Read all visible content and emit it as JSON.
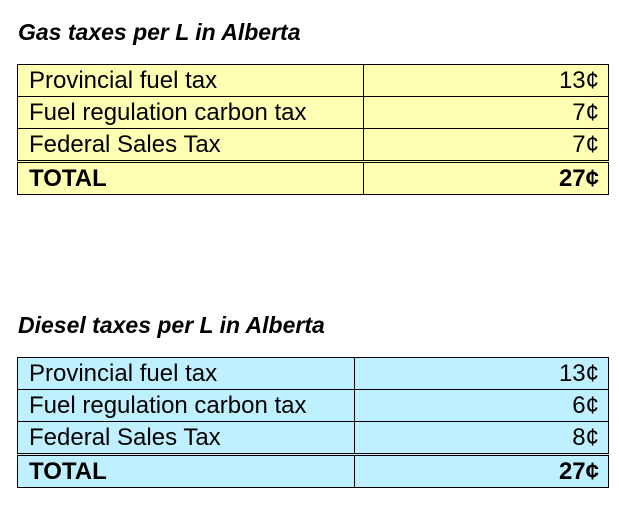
{
  "gas": {
    "title": "Gas taxes per L in Alberta",
    "rows": [
      {
        "label": "Provincial fuel tax",
        "amount": "13¢"
      },
      {
        "label": "Fuel regulation carbon tax",
        "amount": "7¢"
      },
      {
        "label": "Federal Sales Tax",
        "amount": "7¢"
      }
    ],
    "total": {
      "label": "TOTAL",
      "amount": "27¢"
    },
    "background_color": "#ffffb3"
  },
  "diesel": {
    "title": "Diesel taxes per L in Alberta",
    "rows": [
      {
        "label": "Provincial fuel tax",
        "amount": "13¢"
      },
      {
        "label": "Fuel regulation carbon tax",
        "amount": "6¢"
      },
      {
        "label": "Federal Sales Tax",
        "amount": "8¢"
      }
    ],
    "total": {
      "label": "TOTAL",
      "amount": "27¢"
    },
    "background_color": "#bff0ff"
  }
}
